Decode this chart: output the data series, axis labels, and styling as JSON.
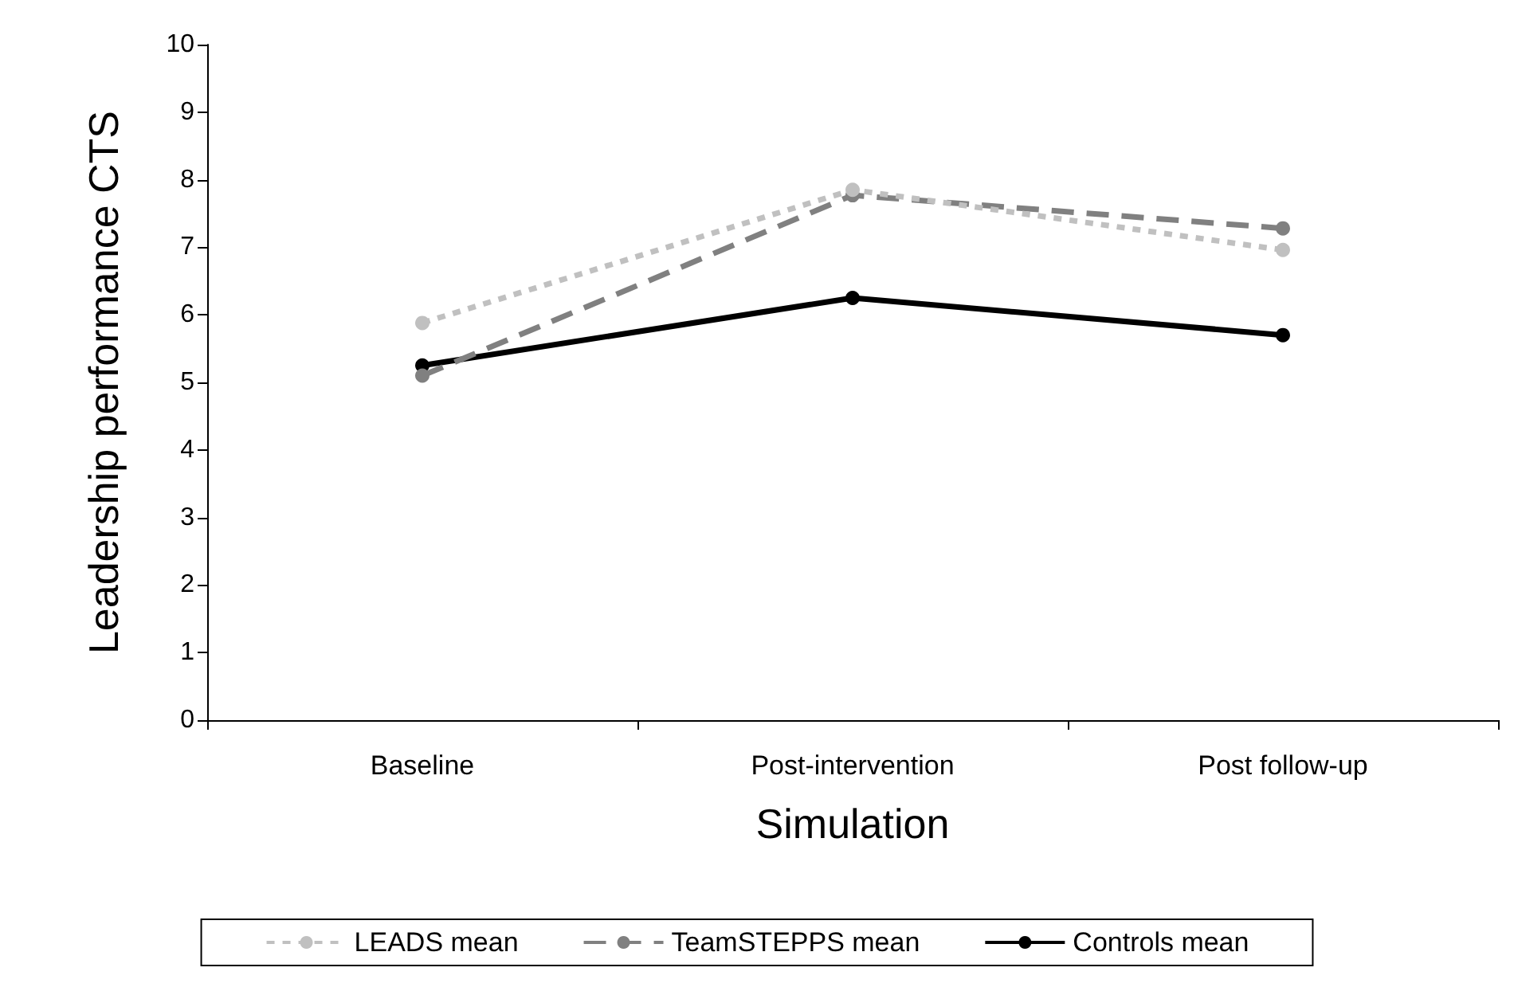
{
  "chart_data": {
    "type": "line",
    "xlabel": "Simulation",
    "ylabel": "Leadership performance CTS",
    "categories": [
      "Baseline",
      "Post-intervention",
      "Post follow-up"
    ],
    "series": [
      {
        "name": "LEADS mean",
        "color": "#c0c0c0",
        "line_style": "dotted",
        "values": [
          5.88,
          7.85,
          6.96
        ]
      },
      {
        "name": "TeamSTEPPS mean",
        "color": "#808080",
        "line_style": "dashed",
        "values": [
          5.1,
          7.77,
          7.28
        ]
      },
      {
        "name": "Controls mean",
        "color": "#000000",
        "line_style": "solid",
        "values": [
          5.25,
          6.25,
          5.7
        ]
      }
    ],
    "ylim": [
      0,
      10
    ],
    "yticks": [
      0,
      1,
      2,
      3,
      4,
      5,
      6,
      7,
      8,
      9,
      10
    ],
    "grid": false,
    "legend": "bottom",
    "marker": "circle"
  }
}
